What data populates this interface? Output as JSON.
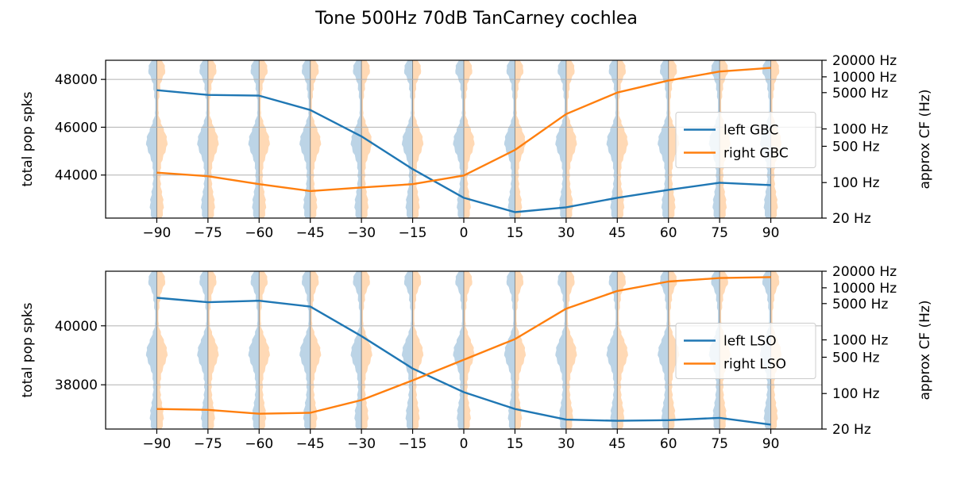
{
  "title": "Tone 500Hz 70dB TanCarney cochlea",
  "colors": {
    "left": "#1f77b4",
    "right": "#ff7f0e",
    "left_fill": "#bcd4e6",
    "right_fill": "#ffd9b5",
    "grid": "#b0b0b0"
  },
  "chart_data": [
    {
      "type": "line",
      "ylabel": "total pop spks",
      "ylabel_right": "approx CF (Hz)",
      "xlim": [
        -105,
        105
      ],
      "ylim": [
        42200,
        48800
      ],
      "yticks": [
        44000,
        46000,
        48000
      ],
      "xticks": [
        -90,
        -75,
        -60,
        -45,
        -30,
        -15,
        0,
        15,
        30,
        45,
        60,
        75,
        90
      ],
      "xtick_labels": [
        "−90",
        "−75",
        "−60",
        "−45",
        "−30",
        "−15",
        "0",
        "15",
        "30",
        "45",
        "60",
        "75",
        "90"
      ],
      "right_ticks": [
        {
          "label": "20000 Hz",
          "frac": 1.0
        },
        {
          "label": "10000 Hz",
          "frac": 0.895
        },
        {
          "label": "5000 Hz",
          "frac": 0.795
        },
        {
          "label": "1000 Hz",
          "frac": 0.565
        },
        {
          "label": "500 Hz",
          "frac": 0.455
        },
        {
          "label": "100 Hz",
          "frac": 0.225
        },
        {
          "label": "20 Hz",
          "frac": 0.0
        }
      ],
      "grid": true,
      "legend_position": "center-right",
      "series": [
        {
          "name": "left  GBC",
          "color": "left",
          "x": [
            -90,
            -75,
            -60,
            -45,
            -30,
            -15,
            0,
            15,
            30,
            45,
            60,
            75,
            90
          ],
          "values": [
            47550,
            47350,
            47320,
            46720,
            45620,
            44250,
            43050,
            42450,
            42650,
            43050,
            43380,
            43680,
            43580
          ]
        },
        {
          "name": "right GBC",
          "color": "right",
          "x": [
            -90,
            -75,
            -60,
            -45,
            -30,
            -15,
            0,
            15,
            30,
            45,
            60,
            75,
            90
          ],
          "values": [
            44100,
            43950,
            43620,
            43330,
            43480,
            43620,
            43980,
            45050,
            46550,
            47450,
            47950,
            48330,
            48480
          ]
        }
      ]
    },
    {
      "type": "line",
      "ylabel": "total pop spks",
      "ylabel_right": "approx CF (Hz)",
      "xlim": [
        -105,
        105
      ],
      "ylim": [
        36500,
        41850
      ],
      "yticks": [
        38000,
        40000
      ],
      "xticks": [
        -90,
        -75,
        -60,
        -45,
        -30,
        -15,
        0,
        15,
        30,
        45,
        60,
        75,
        90
      ],
      "xtick_labels": [
        "−90",
        "−75",
        "−60",
        "−45",
        "−30",
        "−15",
        "0",
        "15",
        "30",
        "45",
        "60",
        "75",
        "90"
      ],
      "right_ticks": [
        {
          "label": "20000 Hz",
          "frac": 1.0
        },
        {
          "label": "10000 Hz",
          "frac": 0.895
        },
        {
          "label": "5000 Hz",
          "frac": 0.795
        },
        {
          "label": "1000 Hz",
          "frac": 0.565
        },
        {
          "label": "500 Hz",
          "frac": 0.455
        },
        {
          "label": "100 Hz",
          "frac": 0.225
        },
        {
          "label": "20 Hz",
          "frac": 0.0
        }
      ],
      "grid": true,
      "legend_position": "center-right",
      "series": [
        {
          "name": "left  LSO",
          "color": "left",
          "x": [
            -90,
            -75,
            -60,
            -45,
            -30,
            -15,
            0,
            15,
            30,
            45,
            60,
            75,
            90
          ],
          "values": [
            40950,
            40800,
            40850,
            40650,
            39650,
            38550,
            37750,
            37180,
            36820,
            36780,
            36800,
            36880,
            36650
          ]
        },
        {
          "name": "right LSO",
          "color": "right",
          "x": [
            -90,
            -75,
            -60,
            -45,
            -30,
            -15,
            0,
            15,
            30,
            45,
            60,
            75,
            90
          ],
          "values": [
            37180,
            37150,
            37020,
            37050,
            37480,
            38150,
            38850,
            39550,
            40580,
            41180,
            41500,
            41620,
            41650
          ]
        }
      ]
    }
  ]
}
